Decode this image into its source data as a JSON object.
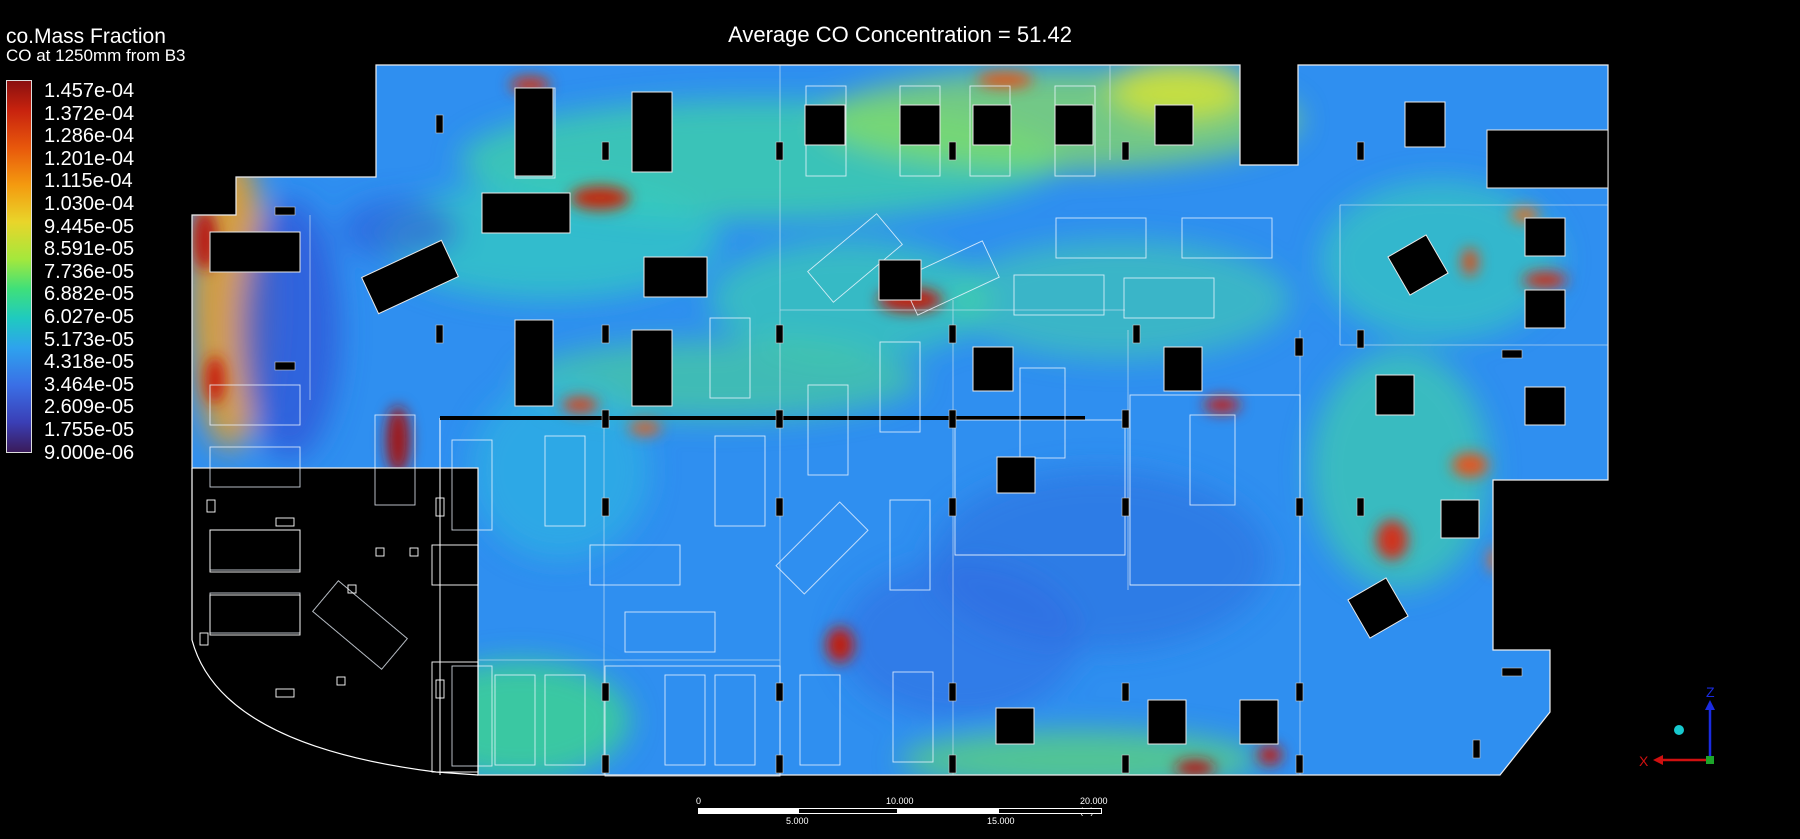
{
  "legend": {
    "title": "co.Mass Fraction",
    "subtitle": "CO at 1250mm from B3",
    "ticks": [
      "1.457e-04",
      "1.372e-04",
      "1.286e-04",
      "1.201e-04",
      "1.115e-04",
      "1.030e-04",
      "9.445e-05",
      "8.591e-05",
      "7.736e-05",
      "6.882e-05",
      "6.027e-05",
      "5.173e-05",
      "4.318e-05",
      "3.464e-05",
      "2.609e-05",
      "1.755e-05",
      "9.000e-06"
    ],
    "colors": [
      "#8b1010",
      "#e8580c",
      "#e9d52a",
      "#3fe07a",
      "#2ea2ee",
      "#3a3fb6",
      "#3a1b5a"
    ]
  },
  "title": "Average CO Concentration = 51.42",
  "scale_bar": {
    "top_labels": [
      "0",
      "10.000",
      "20.000  (m)"
    ],
    "bottom_labels": [
      "5.000",
      "15.000"
    ]
  },
  "axes": {
    "z": "Z",
    "x": "X"
  }
}
